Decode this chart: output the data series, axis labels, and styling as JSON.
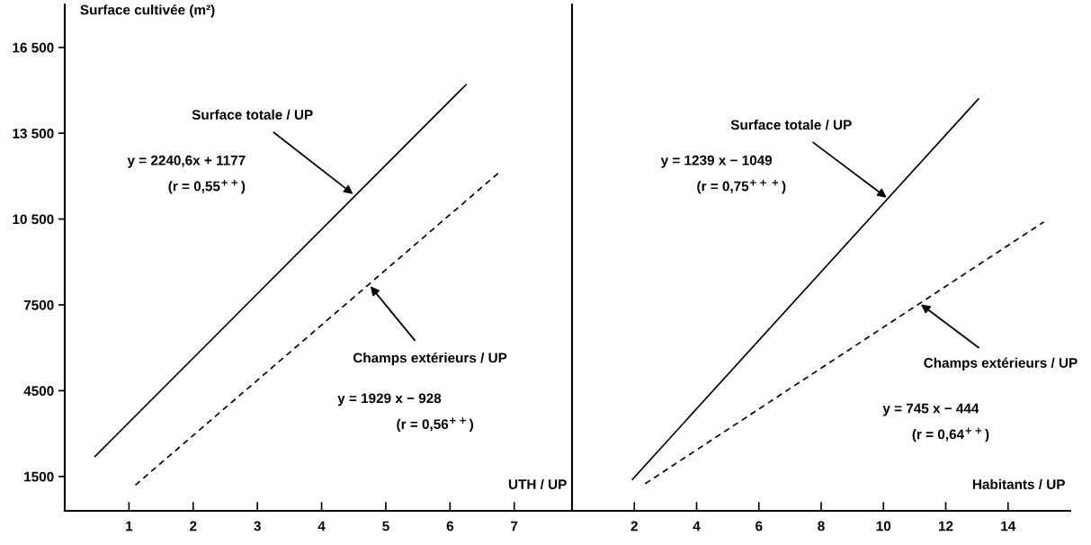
{
  "chart_data": [
    {
      "type": "line",
      "ylabel": "Surface cultivée (m²)",
      "xlabel": "UTH / UP",
      "xlim": [
        0,
        7.9
      ],
      "xticks": [
        1,
        2,
        3,
        4,
        5,
        6,
        7
      ],
      "ylim": [
        300,
        18000
      ],
      "yticks": [
        {
          "value": 1500,
          "label": "1500"
        },
        {
          "value": 4500,
          "label": "4500"
        },
        {
          "value": 7500,
          "label": "7500"
        },
        {
          "value": 10500,
          "label": "10 500"
        },
        {
          "value": 13500,
          "label": "13 500"
        },
        {
          "value": 16500,
          "label": "16 500"
        }
      ],
      "series": [
        {
          "color": "#000000",
          "line_style": "solid",
          "x": [
            0.47,
            6.25
          ],
          "values": [
            2200,
            15200
          ]
        },
        {
          "color": "#000000",
          "line_style": "dashed",
          "x": [
            1.1,
            6.8
          ],
          "values": [
            1200,
            12200
          ]
        }
      ],
      "annotations": [
        {
          "text": "Surface totale / UP",
          "x": 4.49,
          "y": 11370
        },
        {
          "text": "Champs extérieurs / UP",
          "x": 4.76,
          "y": 8150
        },
        "y = 2240,6x + 1177",
        "(r = 0,55$^{++}$)",
        "y = 1929 x − 928",
        "(r = 0,56$^{++}$)"
      ],
      "grid": false,
      "legend": false
    },
    {
      "type": "line",
      "xlabel": "Habitants / UP",
      "xlim": [
        0,
        16
      ],
      "xticks": [
        2,
        4,
        6,
        8,
        10,
        12,
        14
      ],
      "ylim": [
        300,
        18000
      ],
      "tick_labels": "x",
      "series": [
        {
          "color": "#000000",
          "line_style": "solid",
          "x": [
            1.94,
            13.05
          ],
          "values": [
            1400,
            14700
          ]
        },
        {
          "color": "#000000",
          "line_style": "dashed",
          "x": [
            2.35,
            15.15
          ],
          "values": [
            1250,
            10400
          ]
        }
      ],
      "annotations": [
        {
          "text": "Surface totale / UP",
          "x": 10.1,
          "y": 11250
        },
        {
          "text": "Champs extérieurs / UP",
          "x": 11.2,
          "y": 7520
        },
        "y = 1239 x − 1049",
        "(r = 0,75$^{+++}$)",
        "y = 745 x − 444",
        "(r = 0,64$^{++}$)"
      ],
      "grid": false,
      "legend": false
    }
  ]
}
